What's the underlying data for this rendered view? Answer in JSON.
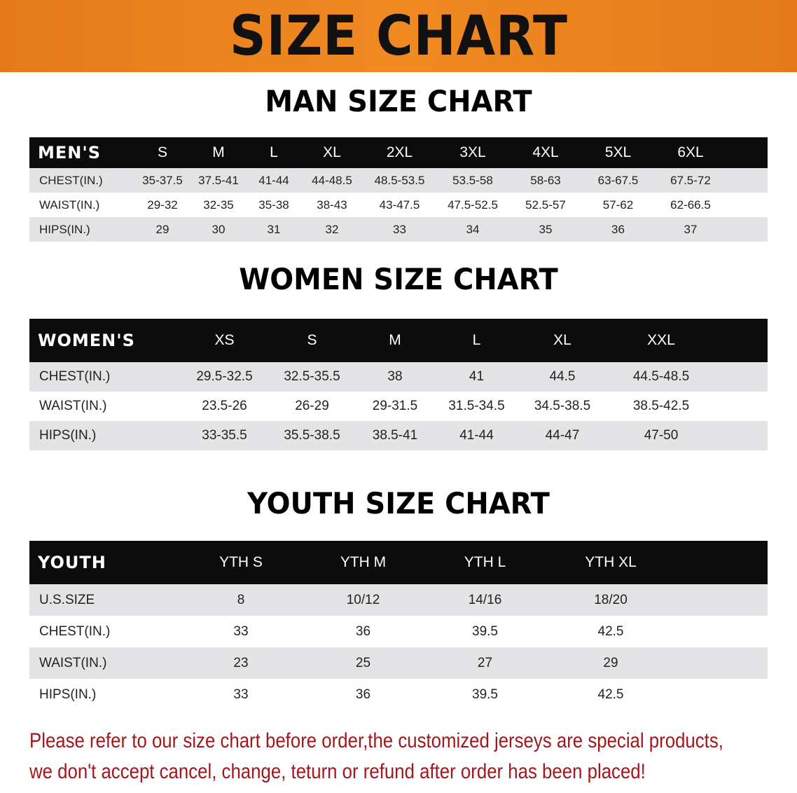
{
  "banner": {
    "title": "SIZE CHART",
    "color": "#ea7f1e"
  },
  "tables": [
    {
      "id": "men",
      "title": "MAN SIZE CHART",
      "header": [
        "MEN'S",
        "S",
        "M",
        "L",
        "XL",
        "2XL",
        "3XL",
        "4XL",
        "5XL",
        "6XL"
      ],
      "rows": [
        [
          "CHEST(IN.)",
          "35-37.5",
          "37.5-41",
          "41-44",
          "44-48.5",
          "48.5-53.5",
          "53.5-58",
          "58-63",
          "63-67.5",
          "67.5-72"
        ],
        [
          "WAIST(IN.)",
          "29-32",
          "32-35",
          "35-38",
          "38-43",
          "43-47.5",
          "47.5-52.5",
          "52.5-57",
          "57-62",
          "62-66.5"
        ],
        [
          "HIPS(IN.)",
          "29",
          "30",
          "31",
          "32",
          "33",
          "34",
          "35",
          "36",
          "37"
        ]
      ]
    },
    {
      "id": "women",
      "title": "WOMEN SIZE CHART",
      "header": [
        "WOMEN'S",
        "XS",
        "S",
        "M",
        "L",
        "XL",
        "XXL"
      ],
      "rows": [
        [
          "CHEST(IN.)",
          "29.5-32.5",
          "32.5-35.5",
          "38",
          "41",
          "44.5",
          "44.5-48.5"
        ],
        [
          "WAIST(IN.)",
          "23.5-26",
          "26-29",
          "29-31.5",
          "31.5-34.5",
          "34.5-38.5",
          "38.5-42.5"
        ],
        [
          "HIPS(IN.)",
          "33-35.5",
          "35.5-38.5",
          "38.5-41",
          "41-44",
          "44-47",
          "47-50"
        ]
      ]
    },
    {
      "id": "youth",
      "title": "YOUTH SIZE CHART",
      "header": [
        "YOUTH",
        "YTH S",
        "YTH M",
        "YTH L",
        "YTH XL"
      ],
      "rows": [
        [
          "U.S.SIZE",
          "8",
          "10/12",
          "14/16",
          "18/20"
        ],
        [
          "CHEST(IN.)",
          "33",
          "36",
          "39.5",
          "42.5"
        ],
        [
          "WAIST(IN.)",
          "23",
          "25",
          "27",
          "29"
        ],
        [
          "HIPS(IN.)",
          "33",
          "36",
          "39.5",
          "42.5"
        ]
      ]
    }
  ],
  "notice": {
    "line1": "Please refer to our size chart before order,the customized jerseys are special products,",
    "line2": "we don't accept cancel, change, teturn or refund after order has been placed!",
    "color": "#a3171b"
  }
}
